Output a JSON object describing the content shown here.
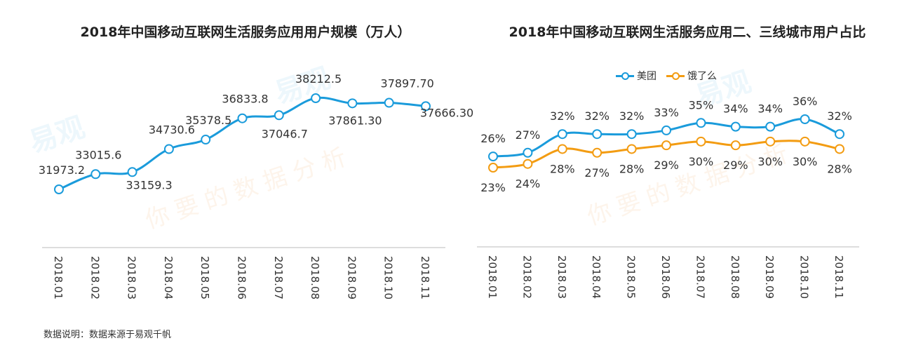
{
  "footnote": "数据说明：数据来源于易观千帆",
  "watermark": {
    "brand": "易观",
    "slogan": "你要的数据分析"
  },
  "chart_data": [
    {
      "type": "line",
      "title": "2018年中国移动互联网生活服务应用用户规模（万人）",
      "categories": [
        "2018.01",
        "2018.02",
        "2018.03",
        "2018.04",
        "2018.05",
        "2018.06",
        "2018.07",
        "2018.08",
        "2018.09",
        "2018.10",
        "2018.11"
      ],
      "series": [
        {
          "values": [
            31973.2,
            33015.6,
            33159.3,
            34730.6,
            35378.5,
            36833.8,
            37046.7,
            38212.5,
            37861.3,
            37897.7,
            37666.3
          ],
          "labels": [
            "31973.2",
            "33015.6",
            "33159.3",
            "34730.6",
            "35378.5",
            "36833.8",
            "37046.7",
            "38212.5",
            "37861.30",
            "37897.70",
            "37666.30"
          ],
          "color": "#1A9BDB"
        }
      ],
      "grid": false
    },
    {
      "type": "line",
      "title": "2018年中国移动互联网生活服务应用二、三线城市用户占比",
      "categories": [
        "2018.01",
        "2018.02",
        "2018.03",
        "2018.04",
        "2018.05",
        "2018.06",
        "2018.07",
        "2018.08",
        "2018.09",
        "2018.10",
        "2018.11"
      ],
      "series": [
        {
          "name": "美团",
          "values": [
            26,
            27,
            32,
            32,
            32,
            33,
            35,
            34,
            34,
            36,
            32
          ],
          "unit": "%",
          "color": "#1A9BDB"
        },
        {
          "name": "饿了么",
          "values": [
            23,
            24,
            28,
            27,
            28,
            29,
            30,
            29,
            30,
            30,
            28
          ],
          "unit": "%",
          "color": "#F39C12"
        }
      ],
      "legend_position": "top",
      "grid": false
    }
  ]
}
